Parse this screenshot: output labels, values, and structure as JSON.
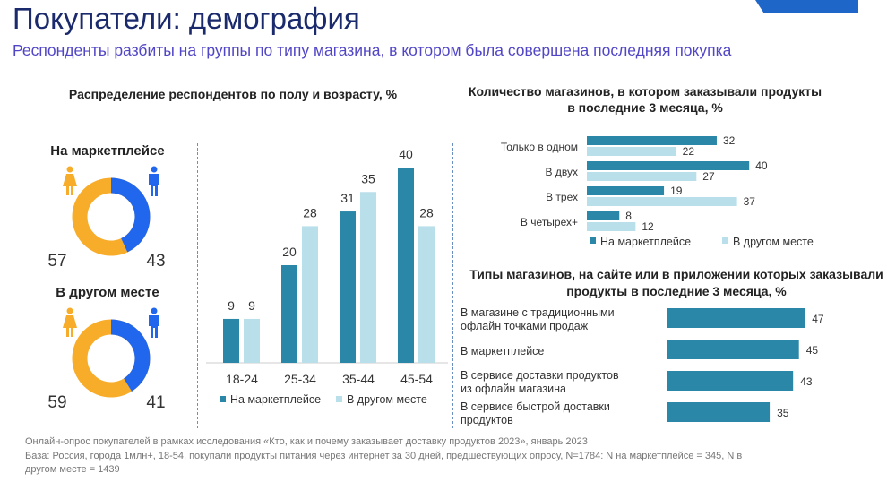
{
  "header": {
    "title": "Покупатели: демография",
    "subtitle": "Респонденты разбиты на группы по типу магазина, в котором была совершена последняя покупка"
  },
  "colors": {
    "primary": "#2a87a8",
    "secondary": "#b9dfea",
    "female": "#f8ad2a",
    "male": "#2167ee"
  },
  "chart_data": [
    {
      "type": "pie",
      "title": "",
      "groups": [
        {
          "label": "На маркетплейсе",
          "female": 57,
          "male": 43
        },
        {
          "label": "В другом месте",
          "female": 59,
          "male": 41
        }
      ],
      "icons": [
        "female-icon",
        "male-icon"
      ]
    },
    {
      "type": "bar",
      "title": "Распределение респондентов по полу и возрасту, %",
      "categories": [
        "18-24",
        "25-34",
        "35-44",
        "45-54"
      ],
      "series": [
        {
          "name": "На маркетплейсе",
          "values": [
            9,
            20,
            31,
            40
          ]
        },
        {
          "name": "В другом месте",
          "values": [
            9,
            28,
            35,
            28
          ]
        }
      ],
      "legend": "bottom",
      "ylim": [
        0,
        40
      ]
    },
    {
      "type": "bar",
      "orientation": "horizontal",
      "title": "Количество магазинов, в котором заказывали продукты в последние 3 месяца, %",
      "categories": [
        "Только в одном",
        "В двух",
        "В трех",
        "В четырех+"
      ],
      "series": [
        {
          "name": "На маркетплейсе",
          "values": [
            32,
            40,
            19,
            8
          ]
        },
        {
          "name": "В другом месте",
          "values": [
            22,
            27,
            37,
            12
          ]
        }
      ],
      "legend": "bottom"
    },
    {
      "type": "bar",
      "orientation": "horizontal",
      "title": "Типы магазинов, на сайте или в приложении которых заказывали продукты в последние 3 месяца, %",
      "categories": [
        "В магазине с традиционными офлайн точками продаж",
        "В маркетплейсе",
        "В сервисе доставки продуктов из офлайн магазина",
        "В сервисе быстрой доставки продуктов"
      ],
      "values": [
        47,
        45,
        43,
        35
      ]
    }
  ],
  "footer": {
    "line1": "Онлайн-опрос покупателей в рамках исследования «Кто, как и почему заказывает доставку продуктов 2023», январь 2023",
    "line2": "База: Россия, города 1млн+, 18-54, покупали продукты питания через интернет за 30 дней, предшествующих опросу, N=1784: N на маркетплейсе = 345, N в",
    "line3": "другом месте = 1439"
  }
}
